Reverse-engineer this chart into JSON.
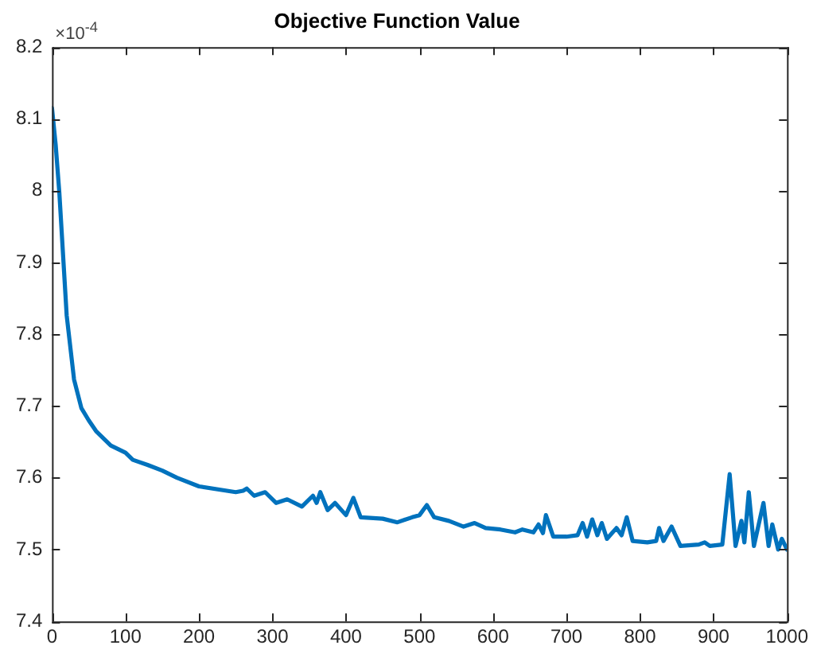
{
  "chart_data": {
    "type": "line",
    "title": "Objective Function Value",
    "annotations": [
      "×10$^{-4}$"
    ],
    "x": [
      0,
      5,
      10,
      20,
      30,
      40,
      50,
      60,
      80,
      100,
      110,
      130,
      150,
      170,
      200,
      250,
      260,
      265,
      275,
      290,
      305,
      320,
      340,
      355,
      360,
      365,
      375,
      385,
      400,
      410,
      420,
      450,
      470,
      490,
      500,
      510,
      520,
      540,
      560,
      575,
      590,
      610,
      630,
      640,
      655,
      662,
      668,
      672,
      682,
      700,
      715,
      722,
      728,
      735,
      742,
      748,
      755,
      768,
      775,
      782,
      790,
      810,
      822,
      826,
      832,
      843,
      855,
      880,
      888,
      895,
      912,
      922,
      930,
      938,
      942,
      948,
      955,
      968,
      975,
      980,
      988,
      993,
      1000
    ],
    "series": [
      {
        "color": "#0072bd",
        "values": [
          8.115,
          8.064,
          7.997,
          7.826,
          7.737,
          7.697,
          7.68,
          7.665,
          7.645,
          7.635,
          7.625,
          7.618,
          7.61,
          7.6,
          7.588,
          7.58,
          7.582,
          7.585,
          7.575,
          7.58,
          7.565,
          7.57,
          7.56,
          7.575,
          7.565,
          7.58,
          7.555,
          7.565,
          7.548,
          7.572,
          7.545,
          7.543,
          7.538,
          7.545,
          7.548,
          7.562,
          7.545,
          7.54,
          7.532,
          7.537,
          7.53,
          7.528,
          7.524,
          7.528,
          7.524,
          7.535,
          7.523,
          7.548,
          7.518,
          7.518,
          7.52,
          7.537,
          7.518,
          7.542,
          7.52,
          7.537,
          7.515,
          7.53,
          7.52,
          7.545,
          7.512,
          7.51,
          7.512,
          7.53,
          7.512,
          7.532,
          7.505,
          7.507,
          7.51,
          7.505,
          7.507,
          7.605,
          7.505,
          7.54,
          7.51,
          7.58,
          7.505,
          7.565,
          7.505,
          7.535,
          7.5,
          7.515,
          7.5
        ]
      }
    ],
    "xlim": [
      0,
      1000
    ],
    "xticks": [
      0,
      100,
      200,
      300,
      400,
      500,
      600,
      700,
      800,
      900,
      1000
    ],
    "ylim": [
      7.4,
      8.2
    ],
    "yticks": [
      7.4,
      7.5,
      7.6,
      7.7,
      7.8,
      7.9,
      8,
      8.1,
      8.2
    ],
    "grid": false,
    "legend": false,
    "marker": "none",
    "line_style": "solid"
  }
}
